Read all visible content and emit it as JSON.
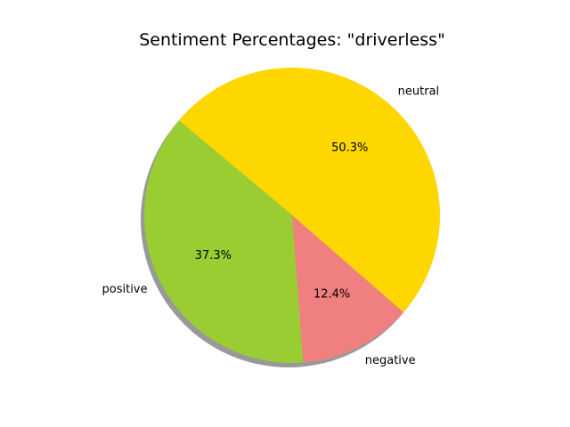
{
  "chart_data": {
    "type": "pie",
    "title": "Sentiment Percentages: \"driverless\"",
    "slices": [
      {
        "label": "neutral",
        "value": 50.3,
        "pct_label": "50.3%",
        "color": "#FFD700"
      },
      {
        "label": "negative",
        "value": 12.4,
        "pct_label": "12.4%",
        "color": "#F08080"
      },
      {
        "label": "positive",
        "value": 37.3,
        "pct_label": "37.3%",
        "color": "#9ACD32"
      }
    ],
    "start_angle_deg": 140,
    "direction": "clockwise",
    "shadow": true,
    "legend": "none"
  }
}
